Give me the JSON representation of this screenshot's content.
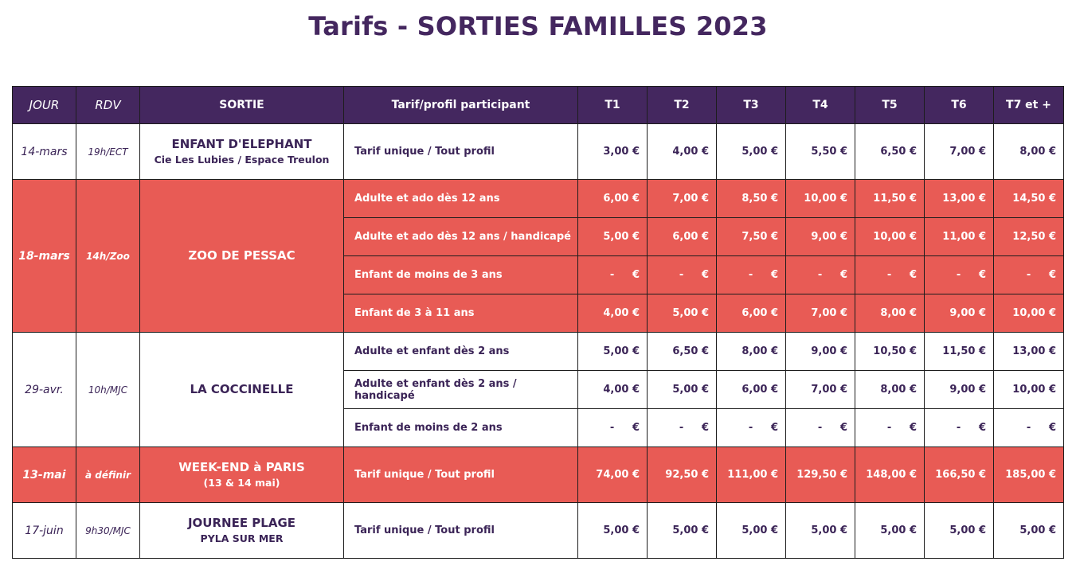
{
  "title": "Tarifs - SORTIES FAMILLES 2023",
  "colors": {
    "header_bg": "#44275f",
    "highlight_bg": "#e85b55",
    "text": "#3b2457"
  },
  "headers": [
    "JOUR",
    "RDV",
    "SORTIE",
    "Tarif/profil participant",
    "T1",
    "T2",
    "T3",
    "T4",
    "T5",
    "T6",
    "T7 et +"
  ],
  "events": [
    {
      "jour": "14-mars",
      "rdv": "19h/ECT",
      "sortie": "ENFANT D'ELEPHANT",
      "sortie_sub": "Cie Les Lubies / Espace Treulon",
      "rows": [
        {
          "profil": "Tarif unique / Tout profil",
          "prices": [
            "3,00 €",
            "4,00 €",
            "5,00 €",
            "5,50 €",
            "6,50 €",
            "7,00 €",
            "8,00 €"
          ]
        }
      ]
    },
    {
      "jour": "18-mars",
      "rdv": "14h/Zoo",
      "sortie": "ZOO DE PESSAC",
      "sortie_sub": "",
      "rows": [
        {
          "profil": "Adulte et ado dès 12 ans",
          "prices": [
            "6,00 €",
            "7,00 €",
            "8,50 €",
            "10,00 €",
            "11,50 €",
            "13,00 €",
            "14,50 €"
          ]
        },
        {
          "profil": "Adulte  et ado dès 12 ans / handicapé",
          "prices": [
            "5,00 €",
            "6,00 €",
            "7,50 €",
            "9,00 €",
            "10,00 €",
            "11,00 €",
            "12,50 €"
          ]
        },
        {
          "profil": "Enfant de moins de 3 ans",
          "prices": [
            "-     €",
            "-     €",
            "-     €",
            "-     €",
            "-     €",
            "-     €",
            "-     €"
          ]
        },
        {
          "profil": "Enfant de 3 à 11 ans",
          "prices": [
            "4,00 €",
            "5,00 €",
            "6,00 €",
            "7,00 €",
            "8,00 €",
            "9,00 €",
            "10,00 €"
          ]
        }
      ]
    },
    {
      "jour": "29-avr.",
      "rdv": "10h/MJC",
      "sortie": "LA COCCINELLE",
      "sortie_sub": "",
      "rows": [
        {
          "profil": "Adulte et enfant dès 2 ans",
          "prices": [
            "5,00 €",
            "6,50 €",
            "8,00 €",
            "9,00 €",
            "10,50 €",
            "11,50 €",
            "13,00 €"
          ]
        },
        {
          "profil": "Adulte et enfant dès 2 ans / handicapé",
          "prices": [
            "4,00 €",
            "5,00 €",
            "6,00 €",
            "7,00 €",
            "8,00 €",
            "9,00 €",
            "10,00 €"
          ]
        },
        {
          "profil": "Enfant de moins de 2 ans",
          "prices": [
            "-     €",
            "-     €",
            "-     €",
            "-     €",
            "-     €",
            "-     €",
            "-     €"
          ]
        }
      ]
    },
    {
      "jour": "13-mai",
      "rdv": "à définir",
      "sortie": "WEEK-END à PARIS",
      "sortie_sub": "(13 & 14 mai)",
      "rows": [
        {
          "profil": "Tarif unique / Tout profil",
          "prices": [
            "74,00 €",
            "92,50 €",
            "111,00 €",
            "129,50 €",
            "148,00 €",
            "166,50 €",
            "185,00 €"
          ]
        }
      ]
    },
    {
      "jour": "17-juin",
      "rdv": "9h30/MJC",
      "sortie": "JOURNEE PLAGE",
      "sortie_sub": "PYLA SUR MER",
      "rows": [
        {
          "profil": "Tarif unique / Tout profil",
          "prices": [
            "5,00 €",
            "5,00 €",
            "5,00 €",
            "5,00 €",
            "5,00 €",
            "5,00 €",
            "5,00 €"
          ]
        }
      ]
    }
  ]
}
